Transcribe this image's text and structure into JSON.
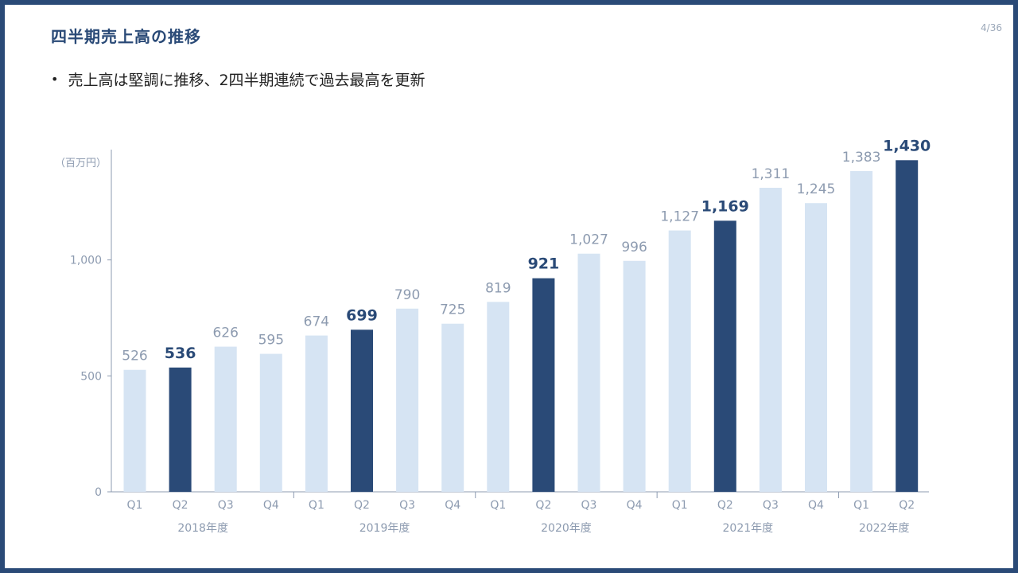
{
  "header": {
    "title": "四半期売上高の推移",
    "page_number": "4/36"
  },
  "bullets": [
    "売上高は堅調に推移、2四半期連続で過去最高を更新"
  ],
  "colors": {
    "accent": "#2a4a77",
    "bar_highlight": "#2a4a77",
    "bar_normal": "#d6e4f3",
    "label_muted": "#8d9bb0"
  },
  "chart_data": {
    "type": "bar",
    "unit_label": "（百万円）",
    "categories": [
      "Q1",
      "Q2",
      "Q3",
      "Q4",
      "Q1",
      "Q2",
      "Q3",
      "Q4",
      "Q1",
      "Q2",
      "Q3",
      "Q4",
      "Q1",
      "Q2",
      "Q3",
      "Q4",
      "Q1",
      "Q2"
    ],
    "groups": [
      {
        "label": "2018年度",
        "count": 4
      },
      {
        "label": "2019年度",
        "count": 4
      },
      {
        "label": "2020年度",
        "count": 4
      },
      {
        "label": "2021年度",
        "count": 4
      },
      {
        "label": "2022年度",
        "count": 2
      }
    ],
    "values": [
      526,
      536,
      626,
      595,
      674,
      699,
      790,
      725,
      819,
      921,
      1027,
      996,
      1127,
      1169,
      1311,
      1245,
      1383,
      1430
    ],
    "value_labels": [
      "526",
      "536",
      "626",
      "595",
      "674",
      "699",
      "790",
      "725",
      "819",
      "921",
      "1,027",
      "996",
      "1,127",
      "1,169",
      "1,311",
      "1,245",
      "1,383",
      "1,430"
    ],
    "highlighted": [
      false,
      true,
      false,
      false,
      false,
      true,
      false,
      false,
      false,
      true,
      false,
      false,
      false,
      true,
      false,
      false,
      false,
      true
    ],
    "y_ticks": [
      0,
      500,
      1000
    ],
    "y_tick_labels": [
      "0",
      "500",
      "1,000"
    ],
    "ylim": [
      0,
      1500
    ],
    "grid": false
  }
}
